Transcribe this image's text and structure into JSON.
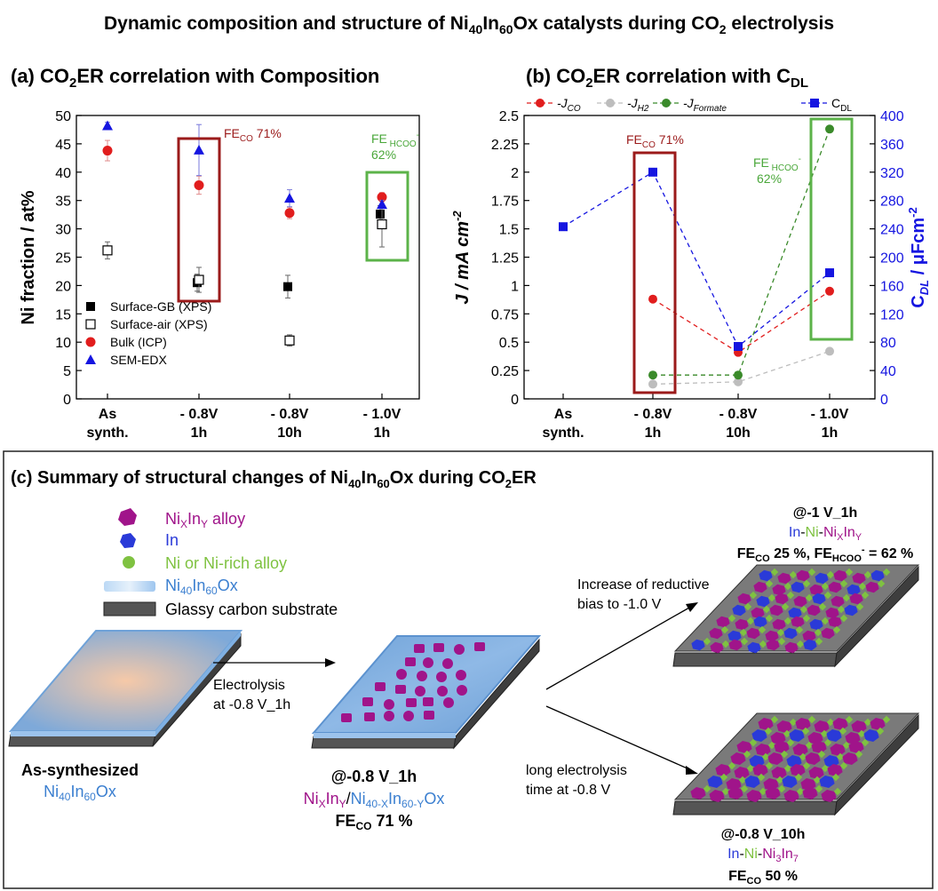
{
  "figure_title": {
    "pre": "Dynamic composition and structure of Ni",
    "s1": "40",
    "mid": "In",
    "s2": "60",
    "mid2": "Ox catalysts during CO",
    "s3": "2",
    "post": " electrolysis"
  },
  "panel_a": {
    "heading": {
      "pre": "(a)  CO",
      "sub": "2",
      "post": "ER correlation with Composition"
    },
    "ylabel": "Ni fraction / at%",
    "fe_co_label": {
      "pre": "FE",
      "sub": "CO",
      "post": " 71%"
    },
    "fe_hcoo_label": {
      "pre": "FE",
      "sub": " HCOO",
      "sup": "-",
      "line2": "62%"
    }
  },
  "panel_b": {
    "heading": {
      "pre": "(b) CO",
      "sub": "2",
      "mid": "ER correlation with C",
      "sub2": "DL"
    },
    "ylabel_left": {
      "pre": "J / mA cm",
      "sup": "-2"
    },
    "ylabel_right": {
      "pre": "C",
      "sub": "DL",
      "mid": " / μFcm",
      "sup": "-2"
    },
    "legend": [
      {
        "pre": "J",
        "sub": "CO",
        "color": "#e11d1d"
      },
      {
        "pre": "J",
        "sub": "H2",
        "color": "#bdbdbd"
      },
      {
        "pre": "J",
        "sub": "Formate",
        "color": "#3a8a2a"
      },
      {
        "pre": "C",
        "sub": "DL",
        "color": "#1515e0"
      }
    ],
    "fe_co_label": {
      "pre": "FE",
      "sub": "CO",
      "post": " 71%"
    },
    "fe_hcoo_label": {
      "pre": "FE",
      "sub": " HCOO",
      "sup": "-",
      "line2": "62%"
    }
  },
  "chart_data": [
    {
      "type": "scatter",
      "title": "CO2ER correlation with Composition",
      "xlabel": "",
      "ylabel": "Ni fraction / at%",
      "categories": [
        [
          "As",
          "synth."
        ],
        [
          "- 0.8V",
          "1h"
        ],
        [
          "- 0.8V",
          "10h"
        ],
        [
          "- 1.0V",
          "1h"
        ]
      ],
      "ylim": [
        0,
        50
      ],
      "yticks": [
        0,
        5,
        10,
        15,
        20,
        25,
        30,
        35,
        40,
        45,
        50
      ],
      "series": [
        {
          "name": "Surface-GB (XPS)",
          "marker": "filled-square",
          "color": "#000000",
          "values": [
            null,
            20.5,
            19.8,
            32.6
          ],
          "err": [
            null,
            1.5,
            2.0,
            1.5
          ]
        },
        {
          "name": "Surface-air (XPS)",
          "marker": "open-square",
          "color": "#000000",
          "values": [
            26.2,
            21.0,
            10.3,
            30.8
          ],
          "err": [
            1.5,
            2.2,
            1.0,
            4.0
          ]
        },
        {
          "name": "Bulk (ICP)",
          "marker": "circle",
          "color": "#e11d1d",
          "values": [
            43.8,
            37.7,
            32.8,
            35.6
          ],
          "err": [
            1.8,
            1.6,
            1.0,
            0.8
          ]
        },
        {
          "name": "SEM-EDX",
          "marker": "triangle",
          "color": "#1515e0",
          "values": [
            48.2,
            43.9,
            35.4,
            34.3
          ],
          "err": [
            0.6,
            4.5,
            1.5,
            0.7
          ]
        }
      ],
      "legend_position": "lower-left",
      "grid": false
    },
    {
      "type": "line",
      "title": "CO2ER correlation with CDL",
      "categories": [
        [
          "As",
          "synth."
        ],
        [
          "- 0.8V",
          "1h"
        ],
        [
          "- 0.8V",
          "10h"
        ],
        [
          "- 1.0V",
          "1h"
        ]
      ],
      "ylabel": "J / mA cm-2",
      "ylim": [
        0,
        2.5
      ],
      "yticks": [
        0,
        0.25,
        0.5,
        0.75,
        1,
        1.25,
        1.5,
        1.75,
        2,
        2.25,
        2.5
      ],
      "ylabel_right": "CDL / μFcm-2",
      "ylim_right": [
        0,
        400
      ],
      "yticks_right": [
        0,
        40,
        80,
        120,
        160,
        200,
        240,
        280,
        320,
        360,
        400
      ],
      "series": [
        {
          "name": "JCO",
          "axis": "left",
          "color": "#e11d1d",
          "marker": "circle",
          "values": [
            null,
            0.88,
            0.41,
            0.95
          ]
        },
        {
          "name": "JH2",
          "axis": "left",
          "color": "#bdbdbd",
          "marker": "circle",
          "values": [
            null,
            0.13,
            0.15,
            0.42
          ]
        },
        {
          "name": "JFormate",
          "axis": "left",
          "color": "#3a8a2a",
          "marker": "circle",
          "values": [
            null,
            0.21,
            0.21,
            2.38
          ]
        },
        {
          "name": "CDL",
          "axis": "right",
          "color": "#1515e0",
          "marker": "square",
          "values": [
            243,
            320,
            74,
            178
          ]
        }
      ],
      "legend_position": "top",
      "grid": false
    }
  ],
  "panel_c": {
    "heading": {
      "pre": "(c) Summary of structural changes of Ni",
      "s1": "40",
      "mid": "In",
      "s2": "60",
      "mid2": "Ox during CO",
      "s3": "2",
      "post": "ER"
    },
    "legend": [
      {
        "pre": "Ni",
        "sub1": "X",
        "mid": "In",
        "sub2": "Y",
        "post": " alloy",
        "color": "#a0148a"
      },
      {
        "text": "In",
        "color": "#2a3ad8"
      },
      {
        "text": "Ni or Ni-rich alloy",
        "color": "#7fc241"
      },
      {
        "pre": "Ni",
        "sub1": "40",
        "mid": "In",
        "sub2": "60",
        "post": "Ox",
        "color": "#3b7fd0"
      },
      {
        "text": "Glassy carbon substrate",
        "color": "#000000"
      }
    ],
    "arrow1_label": [
      "Electrolysis",
      "at -0.8 V_1h"
    ],
    "arrow2_label": [
      "Increase of reductive",
      "bias to -1.0 V"
    ],
    "arrow3_label": [
      "long electrolysis",
      "time at -0.8 V"
    ],
    "as_synth": {
      "line1": "As-synthesized",
      "line2": {
        "pre": "Ni",
        "s1": "40",
        "mid": "In",
        "s2": "60",
        "post": "Ox"
      }
    },
    "state_1h": {
      "line1": "@-0.8 V_1h",
      "fe": {
        "pre": "FE",
        "sub": "CO",
        "post": " 71 %"
      }
    },
    "state_neg1": {
      "line1": "@-1 V_1h",
      "fe": {
        "pre": "FE",
        "sub": "CO",
        "mid": " 25 %,  FE",
        "sub2": "HCOO",
        "sup": "-",
        "post": " = 62 %"
      }
    },
    "state_10h": {
      "line1": "@-0.8 V_10h",
      "fe": {
        "pre": "FE",
        "sub": "CO",
        "post": " 50 %"
      }
    }
  }
}
